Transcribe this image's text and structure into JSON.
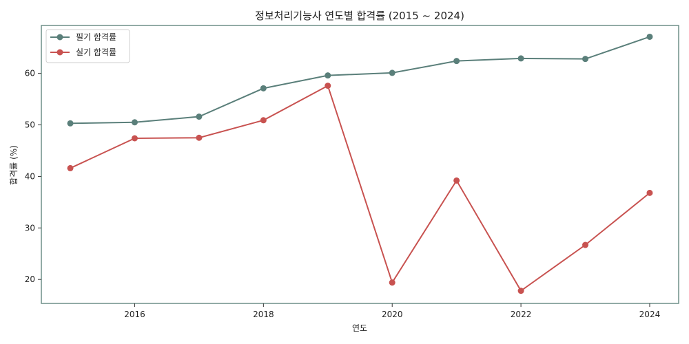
{
  "chart_data": {
    "type": "line",
    "title": "정보처리기능사 연도별 합격률 (2015 ~ 2024)",
    "xlabel": "연도",
    "ylabel": "합격률 (%)",
    "x": [
      2015,
      2016,
      2017,
      2018,
      2019,
      2020,
      2021,
      2022,
      2023,
      2024
    ],
    "xlim": [
      2014.55,
      2024.45
    ],
    "ylim": [
      15.35,
      69.3
    ],
    "xticks": [
      2016,
      2018,
      2020,
      2022,
      2024
    ],
    "yticks": [
      20,
      30,
      40,
      50,
      60
    ],
    "grid": false,
    "legend_position": "top-left",
    "series": [
      {
        "name": "필기 합격률",
        "color": "#5a7f7a",
        "values": [
          50.3,
          50.5,
          51.6,
          57.1,
          59.6,
          60.1,
          62.4,
          62.9,
          62.8,
          67.1
        ]
      },
      {
        "name": "실기 합격률",
        "color": "#c85250",
        "values": [
          41.6,
          47.4,
          47.5,
          50.9,
          57.6,
          19.4,
          39.2,
          17.8,
          26.7,
          36.8
        ]
      }
    ]
  },
  "frame_color": "#6e8f88"
}
